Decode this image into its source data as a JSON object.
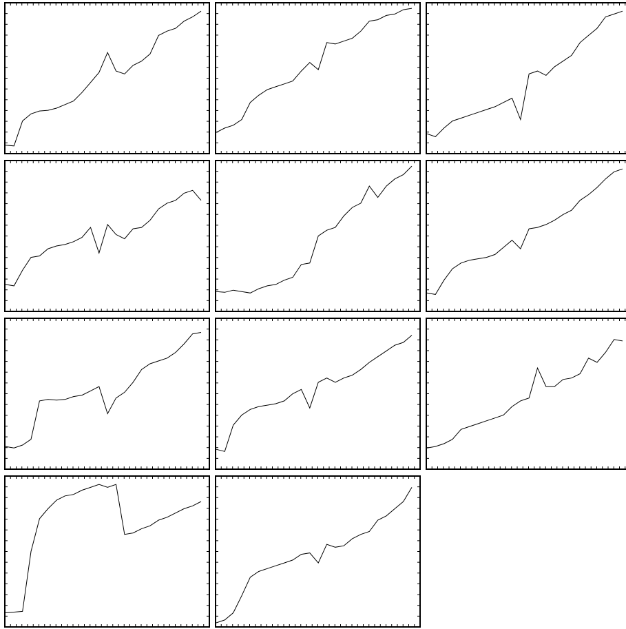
{
  "chart_data": [
    {
      "type": "line",
      "title": "",
      "xlabel": "",
      "ylabel": "",
      "x_range": [
        0,
        24
      ],
      "ylim": [
        0,
        100
      ],
      "grid": false,
      "series": [
        {
          "values": [
            3,
            2.5,
            20,
            25,
            27,
            27.5,
            29,
            31.5,
            34,
            40,
            47,
            54,
            68,
            55,
            53,
            59,
            62,
            67,
            80,
            83,
            85,
            90,
            93,
            97
          ]
        }
      ]
    },
    {
      "type": "line",
      "title": "",
      "xlabel": "",
      "ylabel": "",
      "x_range": [
        0,
        24
      ],
      "ylim": [
        0,
        100
      ],
      "grid": false,
      "series": [
        {
          "values": [
            12,
            15,
            17,
            21,
            33,
            38,
            42,
            44,
            46,
            48,
            55,
            61,
            56,
            75,
            74,
            76,
            78,
            83,
            90,
            91,
            94,
            95,
            98,
            99
          ]
        }
      ]
    },
    {
      "type": "line",
      "title": "",
      "xlabel": "",
      "ylabel": "",
      "x_range": [
        0,
        24
      ],
      "ylim": [
        0,
        100
      ],
      "grid": false,
      "series": [
        {
          "values": [
            11,
            9,
            15,
            20,
            22,
            24,
            26,
            28,
            30,
            33,
            36,
            21,
            53,
            55,
            52,
            58,
            62,
            66,
            75,
            80,
            85,
            93,
            95,
            97
          ]
        }
      ]
    },
    {
      "type": "line",
      "title": "",
      "xlabel": "",
      "ylabel": "",
      "x_range": [
        0,
        24
      ],
      "ylim": [
        0,
        100
      ],
      "grid": false,
      "series": [
        {
          "values": [
            16,
            15,
            26,
            35,
            36,
            41,
            43,
            44,
            46,
            49,
            56,
            38,
            58,
            51,
            48,
            55,
            56,
            61,
            69,
            73,
            75,
            80,
            82,
            75
          ]
        }
      ]
    },
    {
      "type": "line",
      "title": "",
      "xlabel": "",
      "ylabel": "",
      "x_range": [
        0,
        24
      ],
      "ylim": [
        0,
        100
      ],
      "grid": false,
      "series": [
        {
          "values": [
            11,
            10.5,
            12,
            11,
            10,
            13,
            15,
            16,
            19,
            21,
            30,
            31,
            50,
            54,
            56,
            64,
            70,
            73,
            85,
            77,
            85,
            90,
            93,
            99
          ]
        }
      ]
    },
    {
      "type": "line",
      "title": "",
      "xlabel": "",
      "ylabel": "",
      "x_range": [
        0,
        24
      ],
      "ylim": [
        0,
        100
      ],
      "grid": false,
      "series": [
        {
          "values": [
            10,
            9,
            19,
            27,
            31,
            33,
            34,
            35,
            37,
            42,
            47,
            41,
            55,
            56,
            58,
            61,
            65,
            68,
            75,
            79,
            84,
            90,
            95,
            97
          ]
        }
      ]
    },
    {
      "type": "line",
      "title": "",
      "xlabel": "",
      "ylabel": "",
      "x_range": [
        0,
        24
      ],
      "ylim": [
        0,
        100
      ],
      "grid": false,
      "series": [
        {
          "values": [
            13,
            12,
            14,
            18,
            45,
            46,
            45.5,
            46,
            48,
            49,
            52,
            55,
            36,
            47,
            51,
            58,
            67,
            71,
            73,
            75,
            79,
            85,
            92,
            93
          ]
        }
      ]
    },
    {
      "type": "line",
      "title": "",
      "xlabel": "",
      "ylabel": "",
      "x_range": [
        0,
        24
      ],
      "ylim": [
        0,
        100
      ],
      "grid": false,
      "series": [
        {
          "values": [
            11,
            9.5,
            28,
            35,
            39,
            41,
            42,
            43,
            45,
            50,
            53,
            40,
            58,
            61,
            58,
            61,
            63,
            67,
            72,
            76,
            80,
            84,
            86,
            91
          ]
        }
      ]
    },
    {
      "type": "line",
      "title": "",
      "xlabel": "",
      "ylabel": "",
      "x_range": [
        0,
        24
      ],
      "ylim": [
        0,
        100
      ],
      "grid": false,
      "series": [
        {
          "values": [
            12,
            13,
            15,
            18,
            25,
            27,
            29,
            31,
            33,
            35,
            41,
            45,
            47,
            68,
            55,
            55,
            60,
            61,
            64,
            75,
            72,
            79,
            88,
            87
          ]
        }
      ]
    },
    {
      "type": "line",
      "title": "",
      "xlabel": "",
      "ylabel": "",
      "x_range": [
        0,
        24
      ],
      "ylim": [
        0,
        100
      ],
      "grid": false,
      "series": [
        {
          "values": [
            7,
            7.5,
            8,
            50,
            73,
            80,
            86,
            89,
            90,
            93,
            95,
            97,
            95,
            97,
            62,
            63,
            66,
            68,
            72,
            74,
            77,
            80,
            82,
            85
          ]
        }
      ]
    },
    {
      "type": "line",
      "title": "",
      "xlabel": "",
      "ylabel": "",
      "x_range": [
        0,
        24
      ],
      "ylim": [
        0,
        100
      ],
      "grid": false,
      "series": [
        {
          "values": [
            0,
            2,
            7,
            19,
            32,
            36,
            38,
            40,
            42,
            44,
            48,
            49,
            42,
            55,
            53,
            54,
            59,
            62,
            64,
            72,
            75,
            80,
            85,
            95
          ]
        }
      ]
    }
  ]
}
